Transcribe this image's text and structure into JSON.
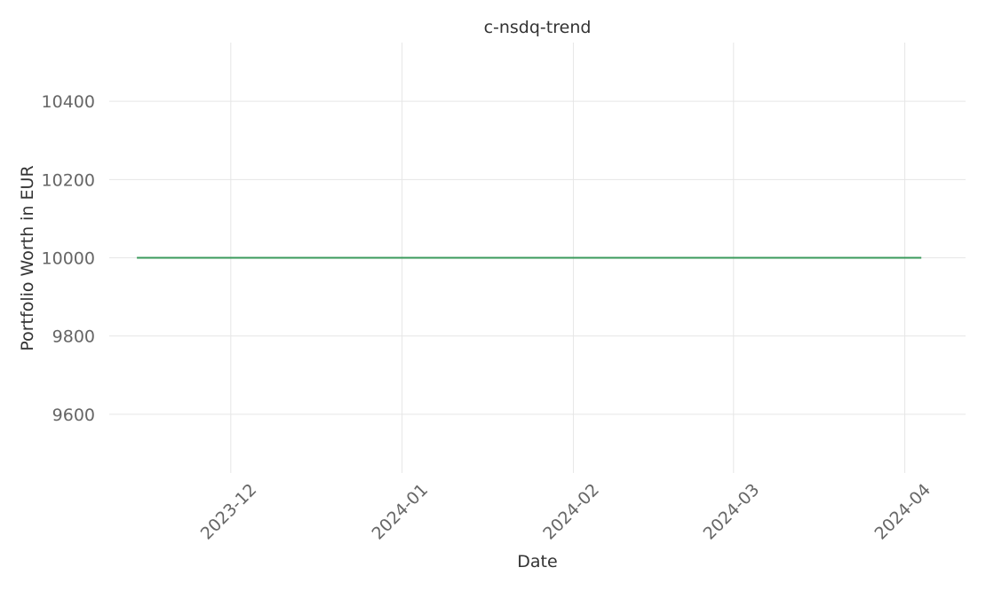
{
  "chart_data": {
    "type": "line",
    "title": "c-nsdq-trend",
    "xlabel": "Date",
    "ylabel": "Portfolio Worth in EUR",
    "x_ticks": [
      "2023-12",
      "2024-01",
      "2024-02",
      "2024-03",
      "2024-04"
    ],
    "y_ticks": [
      "9600",
      "9800",
      "10000",
      "10200",
      "10400"
    ],
    "xlim": [
      "2023-11-09",
      "2024-04-12"
    ],
    "ylim": [
      9450,
      10550
    ],
    "grid": true,
    "series": [
      {
        "color": "#3a9a5b",
        "x": [
          "2023-11-14",
          "2024-04-04"
        ],
        "values": [
          10000,
          10000
        ]
      }
    ]
  }
}
